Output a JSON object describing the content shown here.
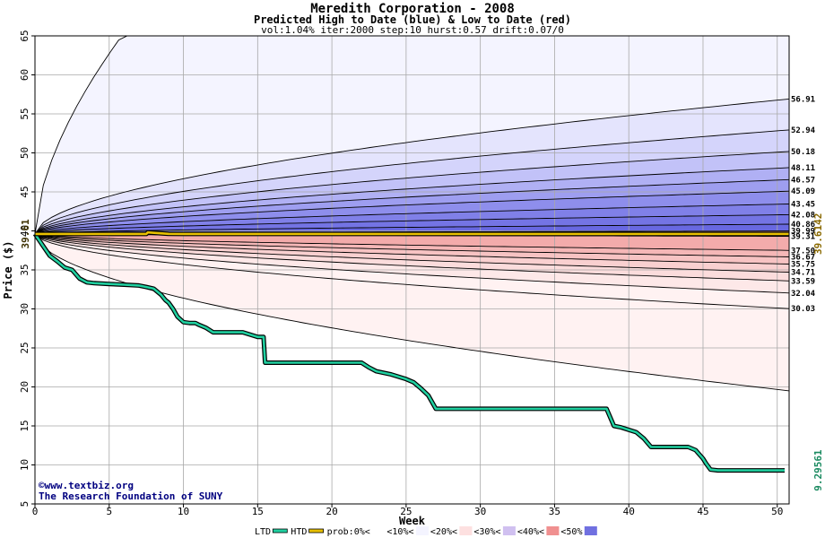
{
  "chart_data": {
    "type": "area",
    "title": "Meredith Corporation - 2008",
    "subtitle": "Predicted High to Date (blue) &  Low to Date (red)",
    "params": "vol:1.04% iter:2000 step:10 hurst:0.57 drift:0.07/0",
    "xlabel": "Week",
    "ylabel": "Price ($)",
    "xlim": [
      0,
      50.8
    ],
    "ylim": [
      5,
      65
    ],
    "xticks": [
      0,
      5,
      10,
      15,
      20,
      25,
      30,
      35,
      40,
      45,
      50
    ],
    "yticks": [
      5,
      10,
      15,
      20,
      25,
      30,
      35,
      40,
      45,
      50,
      55,
      60,
      65
    ],
    "grid": true,
    "start_price": 39.61,
    "start_label": "39.61",
    "end_labels": [
      {
        "text": "39.6142",
        "value": 39.6142,
        "color": "#8a6a00"
      },
      {
        "text": "9.29561",
        "value": 9.29561,
        "color": "#1a8a60"
      }
    ],
    "high_curves": [
      {
        "label": "",
        "end": 65.0,
        "start_slope": 2.75
      },
      {
        "label": "56.91",
        "end": 56.91
      },
      {
        "label": "52.94",
        "end": 52.94
      },
      {
        "label": "50.18",
        "end": 50.18
      },
      {
        "label": "48.11",
        "end": 48.11
      },
      {
        "label": "46.57",
        "end": 46.57
      },
      {
        "label": "45.09",
        "end": 45.09
      },
      {
        "label": "43.45",
        "end": 43.45
      },
      {
        "label": "42.08",
        "end": 42.08
      },
      {
        "label": "40.86",
        "end": 40.86
      },
      {
        "label": "39.99",
        "end": 39.99
      }
    ],
    "low_curves": [
      {
        "label": "39.31",
        "end": 39.31
      },
      {
        "label": "37.50",
        "end": 37.5
      },
      {
        "label": "36.67",
        "end": 36.67
      },
      {
        "label": "35.75",
        "end": 35.75
      },
      {
        "label": "34.71",
        "end": 34.71
      },
      {
        "label": "33.59",
        "end": 33.59
      },
      {
        "label": "32.04",
        "end": 32.04
      },
      {
        "label": "30.03",
        "end": 30.03
      },
      {
        "label": "",
        "end": 19.5
      }
    ],
    "band_colors_high": [
      "#f4f4ff",
      "#e4e4fd",
      "#d4d4fb",
      "#c2c2f8",
      "#b0b0f4",
      "#9e9ef0",
      "#8e8eec",
      "#8080e8",
      "#7474e4",
      "#6868e0"
    ],
    "band_colors_low": [
      "#f2a0a0",
      "#f3abab",
      "#f5b7b7",
      "#f7c3c3",
      "#f9d0d0",
      "#fbdcdc",
      "#fde8e8",
      "#fff2f2"
    ],
    "series": [
      {
        "name": "LTD",
        "color": "#20d0a0",
        "x": [
          0,
          0.5,
          1,
          1.5,
          2,
          2.5,
          3,
          3.5,
          4,
          5,
          6,
          7,
          7.5,
          8,
          8.5,
          8.8,
          9,
          9.3,
          9.6,
          10,
          10.4,
          10.8,
          11,
          11.5,
          12,
          13,
          14,
          15,
          15.4,
          15.5,
          16,
          17,
          18,
          19,
          20,
          21,
          22,
          22.5,
          23,
          24,
          25,
          25.5,
          26,
          26.5,
          27,
          28,
          30,
          32,
          35,
          38.5,
          39,
          39.5,
          40,
          40.5,
          41,
          41.5,
          42,
          43,
          44,
          44.5,
          45,
          45.2,
          45.5,
          46,
          48,
          50.5
        ],
        "values": [
          39.61,
          38.2,
          36.8,
          36.1,
          35.3,
          35.0,
          33.9,
          33.4,
          33.3,
          33.2,
          33.1,
          33.0,
          32.8,
          32.6,
          31.8,
          31.1,
          30.8,
          30.0,
          29.0,
          28.3,
          28.2,
          28.2,
          28.0,
          27.6,
          27.0,
          27.0,
          27.0,
          26.4,
          26.4,
          23.1,
          23.1,
          23.1,
          23.1,
          23.1,
          23.1,
          23.1,
          23.1,
          22.5,
          22.0,
          21.6,
          21.0,
          20.6,
          19.8,
          18.9,
          17.2,
          17.2,
          17.2,
          17.2,
          17.2,
          17.2,
          15.0,
          14.8,
          14.5,
          14.2,
          13.4,
          12.3,
          12.3,
          12.3,
          12.3,
          11.9,
          10.8,
          10.2,
          9.4,
          9.3,
          9.3,
          9.3
        ]
      },
      {
        "name": "HTD",
        "color": "#e8c000",
        "x": [
          0,
          0.5,
          1,
          3,
          7.5,
          7.6,
          9,
          10,
          50.8
        ],
        "values": [
          39.61,
          39.61,
          39.61,
          39.61,
          39.61,
          39.8,
          39.62,
          39.61,
          39.61
        ]
      }
    ],
    "legend": {
      "placement": "bottom-center",
      "items": [
        {
          "label": "LTD",
          "swatch": "line",
          "color": "#20d0a0"
        },
        {
          "label": "HTD",
          "swatch": "line",
          "color": "#e8c000"
        },
        {
          "label": "prob:0%<",
          "swatch": "box",
          "color": "#ffffff"
        },
        {
          "label": "<10%<",
          "swatch": "box",
          "color": "#f4f4ff"
        },
        {
          "label": "<20%<",
          "swatch": "box",
          "color": "#fde0e0"
        },
        {
          "label": "<30%<",
          "swatch": "box",
          "color": "#d0c0f0"
        },
        {
          "label": "<40%<",
          "swatch": "box",
          "color": "#f09090"
        },
        {
          "label": "<50%",
          "swatch": "box",
          "color": "#7070e0"
        }
      ]
    },
    "watermark": {
      "line1": "©www.textbiz.org",
      "line2": "The Research Foundation of SUNY"
    }
  }
}
